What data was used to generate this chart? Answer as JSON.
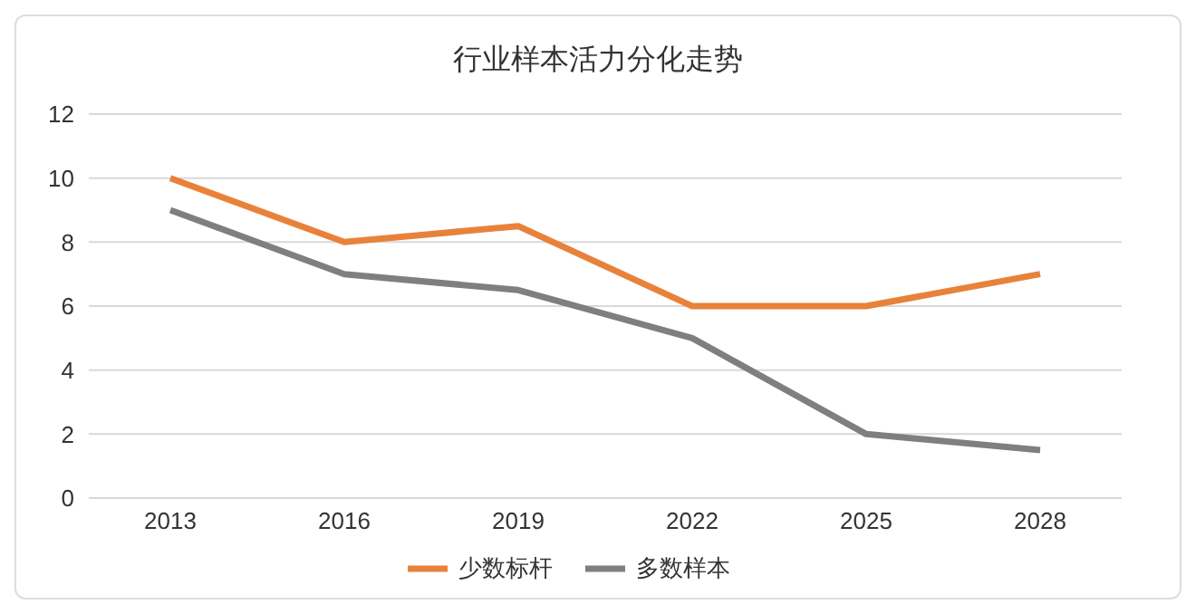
{
  "chart_data": {
    "type": "line",
    "title": "行业样本活力分化走势",
    "categories": [
      "2013",
      "2016",
      "2019",
      "2022",
      "2025",
      "2028"
    ],
    "series": [
      {
        "name": "少数标杆",
        "color": "#e8823a",
        "values": [
          10,
          8,
          8.5,
          6,
          6,
          7
        ]
      },
      {
        "name": "多数样本",
        "color": "#7f7f7f",
        "values": [
          9,
          7,
          6.5,
          5,
          2,
          1.5
        ]
      }
    ],
    "ylim": [
      0,
      12
    ],
    "yticks": [
      0,
      2,
      4,
      6,
      8,
      10,
      12
    ],
    "grid": "y",
    "legend": "bottom",
    "marker": "none",
    "line_style": "solid"
  }
}
